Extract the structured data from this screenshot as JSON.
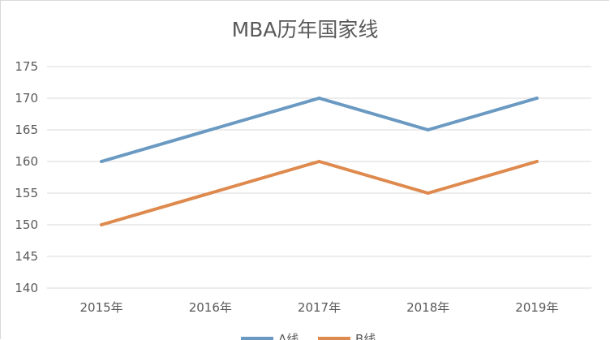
{
  "chart_data": {
    "type": "line",
    "title": "MBA历年国家线",
    "xlabel": "",
    "ylabel": "",
    "categories": [
      "2015年",
      "2016年",
      "2017年",
      "2018年",
      "2019年"
    ],
    "series": [
      {
        "name": "A线",
        "values": [
          160,
          165,
          170,
          165,
          170
        ],
        "color": "#6a9ac2"
      },
      {
        "name": "B线",
        "values": [
          150,
          155,
          160,
          155,
          160
        ],
        "color": "#de8a4e"
      }
    ],
    "ylim": [
      140,
      175
    ],
    "yticks": [
      "140",
      "145",
      "150",
      "155",
      "160",
      "165",
      "170",
      "175"
    ],
    "grid": true,
    "legend": "bottom",
    "gridColor": "#d9d9d9",
    "textColor": "#595959"
  }
}
